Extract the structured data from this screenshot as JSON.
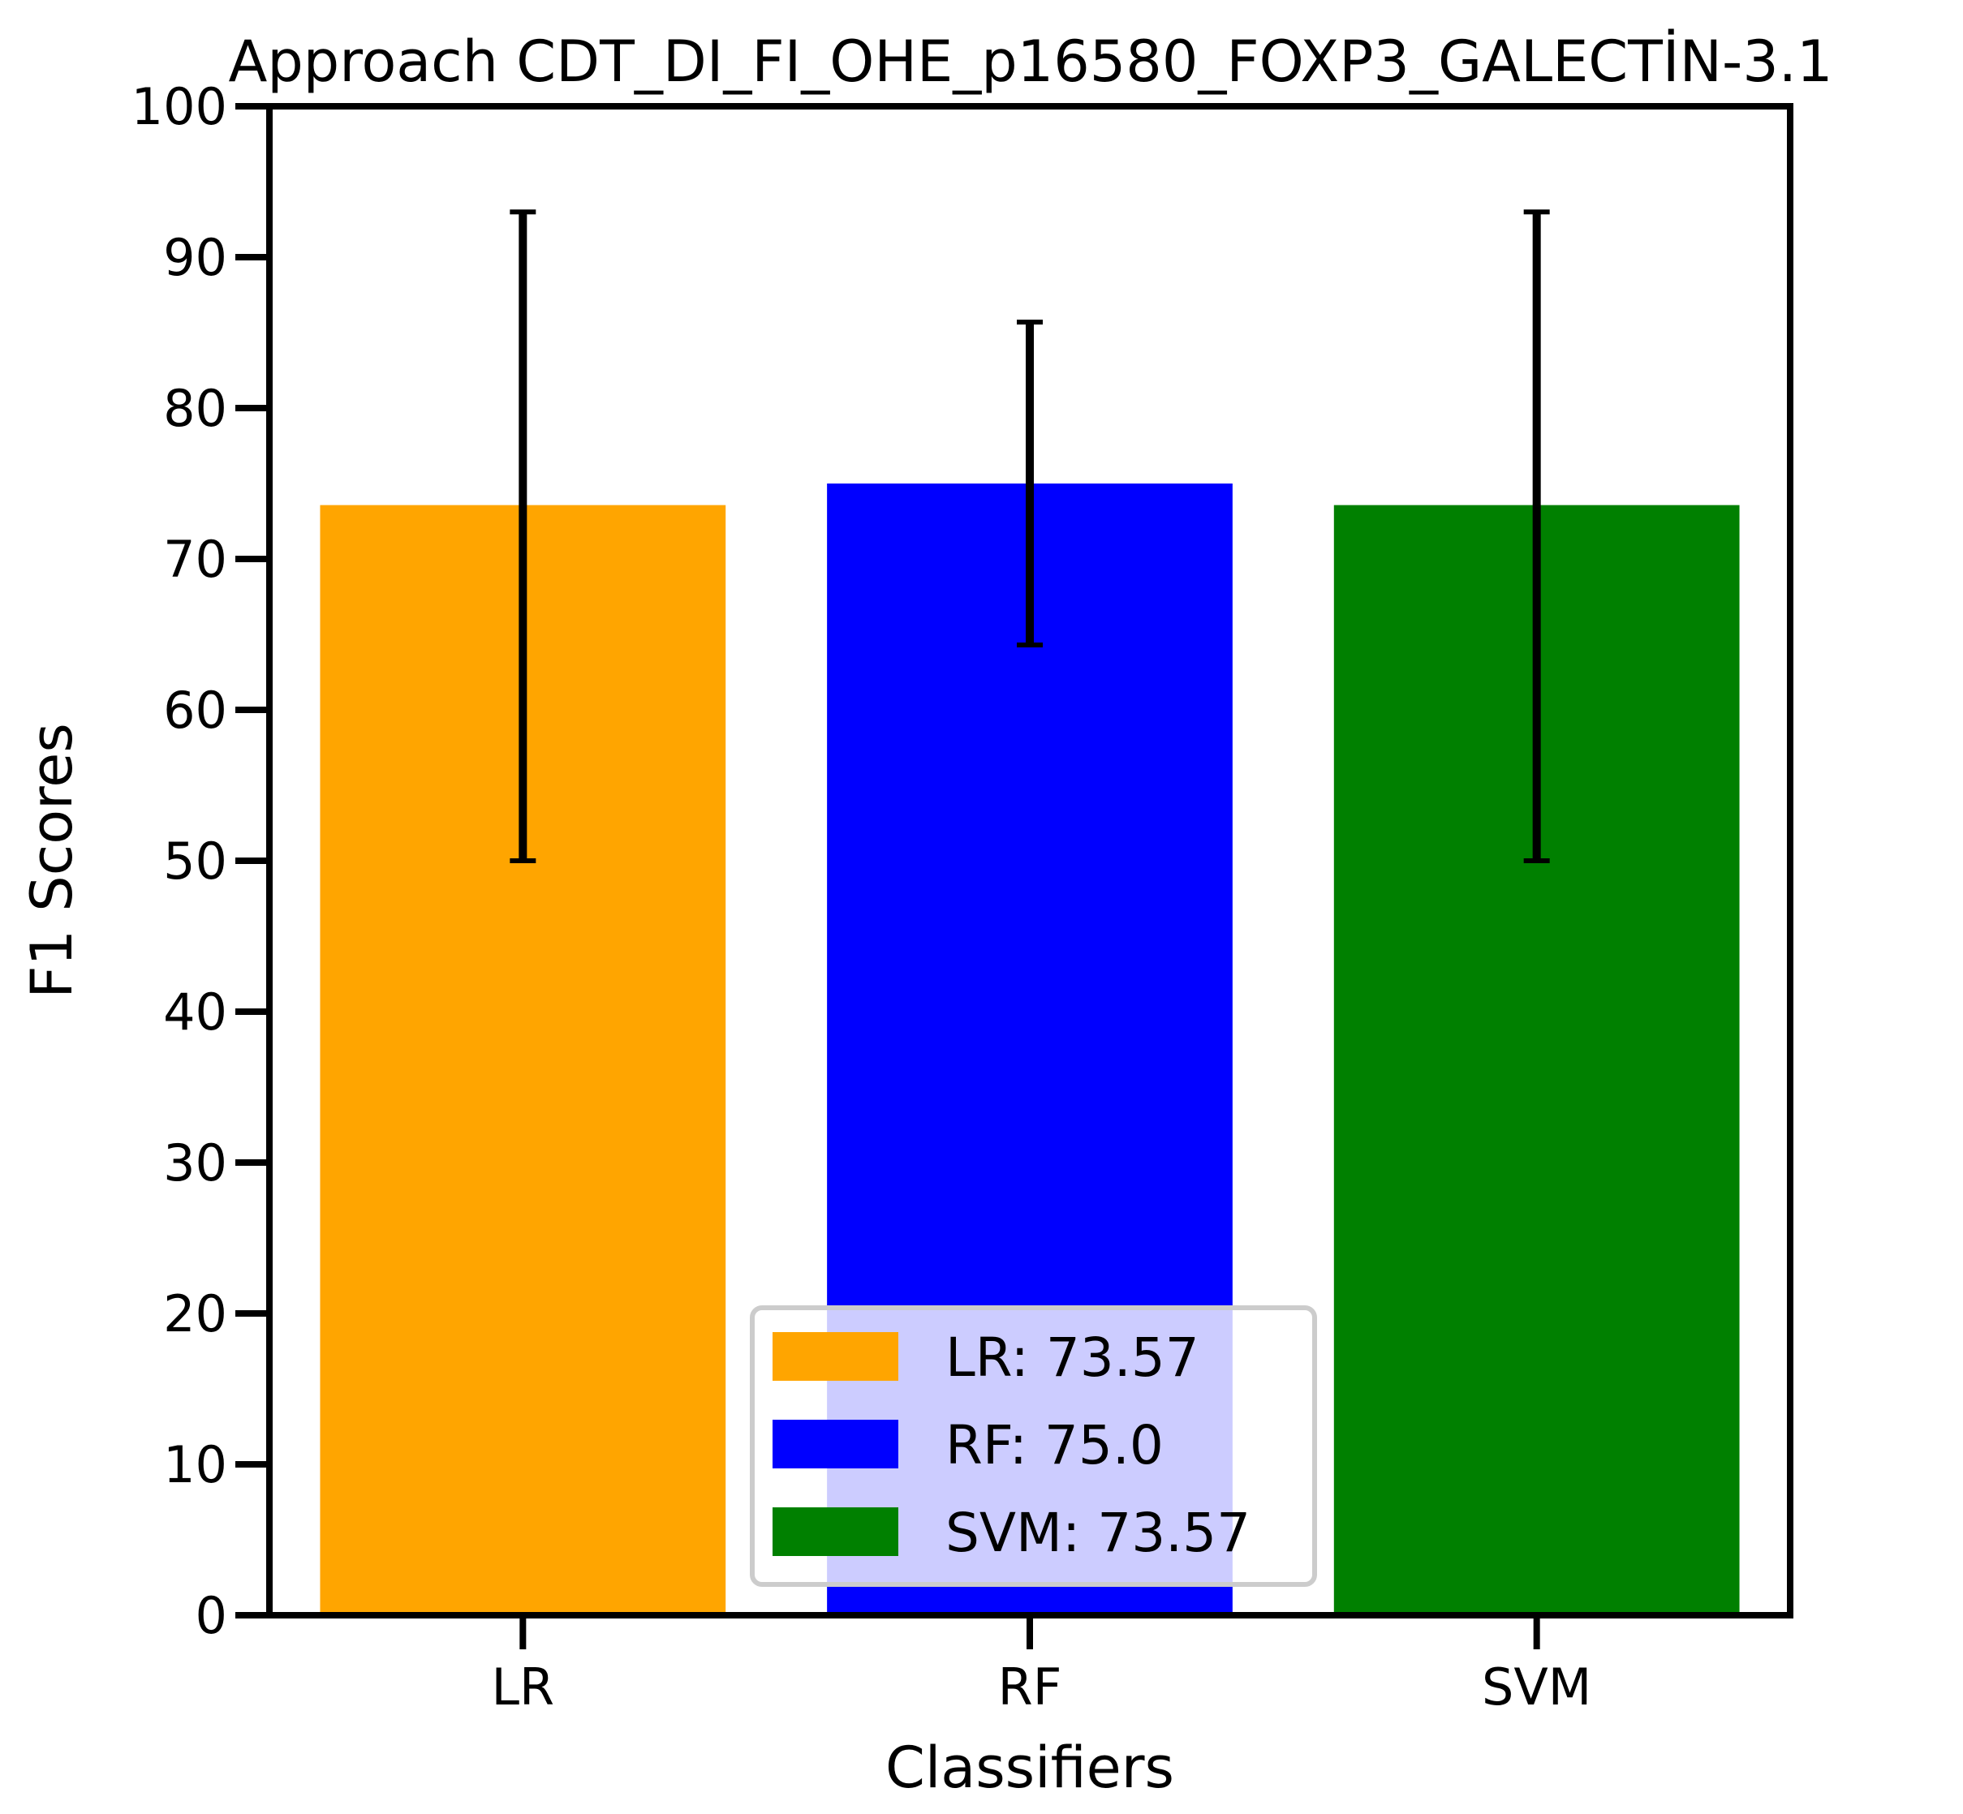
{
  "chart_data": {
    "type": "bar",
    "title": "Approach CDT_DI_FI_OHE_p16580_FOXP3_GALECTİN-3.1",
    "xlabel": "Classifiers",
    "ylabel": "F1 Scores",
    "categories": [
      "LR",
      "RF",
      "SVM"
    ],
    "values": [
      73.57,
      75.0,
      73.57
    ],
    "error_low": [
      50.0,
      64.3,
      50.0
    ],
    "error_high": [
      93.0,
      85.7,
      93.0
    ],
    "colors": [
      "#ffa500",
      "#0000ff",
      "#008000"
    ],
    "ylim": [
      0,
      100
    ],
    "yticks": [
      "0",
      "10",
      "20",
      "30",
      "40",
      "50",
      "60",
      "70",
      "80",
      "90",
      "100"
    ],
    "grid": false,
    "legend": {
      "placement": "bottom-center",
      "entries": [
        "LR: 73.57",
        "RF: 75.0",
        "SVM: 73.57"
      ]
    }
  }
}
